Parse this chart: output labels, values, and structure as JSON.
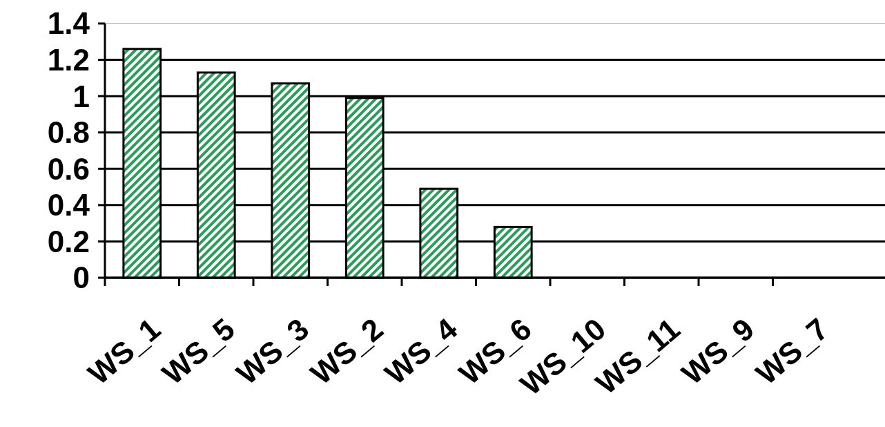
{
  "chart_data": {
    "type": "bar",
    "categories": [
      "WS_1",
      "WS_5",
      "WS_3",
      "WS_2",
      "WS_4",
      "WS_6",
      "WS_10",
      "WS_11",
      "WS_9",
      "WS_7"
    ],
    "values": [
      1.26,
      1.13,
      1.07,
      0.99,
      0.49,
      0.28,
      0,
      0,
      0,
      0
    ],
    "color": "#2e9a5e",
    "ylim": [
      0,
      1.4
    ],
    "yticks": [
      0,
      0.2,
      0.4,
      0.6,
      0.8,
      1,
      1.2,
      1.4
    ],
    "grid": "y"
  }
}
